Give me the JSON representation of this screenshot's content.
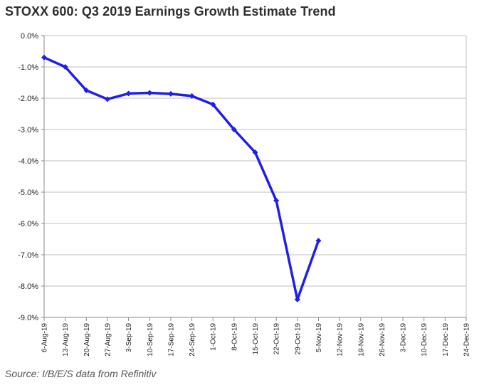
{
  "chart_data": {
    "type": "line",
    "title": "STOXX 600: Q3 2019 Earnings Growth Estimate Trend",
    "source": "Source: I/B/E/S data from Refinitiv",
    "xlabel": "",
    "ylabel": "",
    "ylim": [
      -9.0,
      0.0
    ],
    "yticks": [
      0,
      -1,
      -2,
      -3,
      -4,
      -5,
      -6,
      -7,
      -8,
      -9
    ],
    "ytick_labels": [
      "0.0%",
      "-1.0%",
      "-2.0%",
      "-3.0%",
      "-4.0%",
      "-5.0%",
      "-6.0%",
      "-7.0%",
      "-8.0%",
      "-9.0%"
    ],
    "grid": true,
    "line_color": "#1f1fe6",
    "categories": [
      "6-Aug-19",
      "13-Aug-19",
      "20-Aug-19",
      "27-Aug-19",
      "3-Sep-19",
      "10-Sep-19",
      "17-Sep-19",
      "24-Sep-19",
      "1-Oct-19",
      "8-Oct-19",
      "15-Oct-19",
      "22-Oct-19",
      "29-Oct-19",
      "5-Nov-19",
      "12-Nov-19",
      "19-Nov-19",
      "26-Nov-19",
      "3-Dec-19",
      "10-Dec-19",
      "17-Dec-19",
      "24-Dec-19"
    ],
    "series": [
      {
        "values": [
          -0.7,
          -1.0,
          -1.75,
          -2.03,
          -1.85,
          -1.83,
          -1.86,
          -1.93,
          -2.2,
          -3.0,
          -3.73,
          -5.27,
          -8.43,
          -6.55,
          null,
          null,
          null,
          null,
          null,
          null,
          null
        ]
      }
    ]
  }
}
